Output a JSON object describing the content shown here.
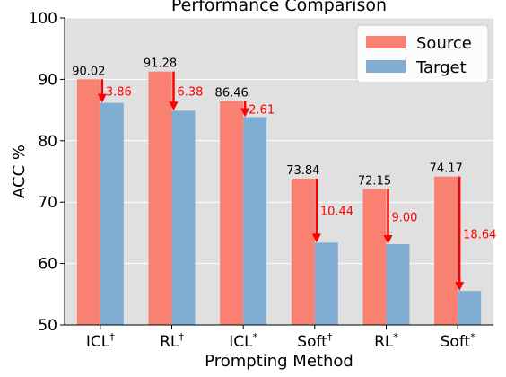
{
  "chart_data": {
    "type": "bar",
    "title": "Performance Comparison",
    "xlabel": "Prompting Method",
    "ylabel": "ACC %",
    "ylim": [
      50,
      100
    ],
    "yticks": [
      50,
      60,
      70,
      80,
      90,
      100
    ],
    "grid": true,
    "legend_position": "top-right",
    "categories": [
      {
        "base": "ICL",
        "sup": "†"
      },
      {
        "base": "RL",
        "sup": "†"
      },
      {
        "base": "ICL",
        "sup": "*"
      },
      {
        "base": "Soft",
        "sup": "†"
      },
      {
        "base": "RL",
        "sup": "*"
      },
      {
        "base": "Soft",
        "sup": "*"
      }
    ],
    "series": [
      {
        "name": "Source",
        "color": "#fa8072",
        "values": [
          90.02,
          91.28,
          86.46,
          73.84,
          72.15,
          74.17
        ]
      },
      {
        "name": "Target",
        "color": "#7fadd3",
        "values": [
          86.16,
          84.9,
          83.85,
          63.4,
          63.15,
          55.53
        ]
      }
    ],
    "source_labels": [
      "90.02",
      "91.28",
      "86.46",
      "73.84",
      "72.15",
      "74.17"
    ],
    "drops": [
      "3.86",
      "6.38",
      "2.61",
      "10.44",
      "9.00",
      "18.64"
    ],
    "arrow_color": "#ff0000",
    "background_color": "#e0e0e0"
  }
}
